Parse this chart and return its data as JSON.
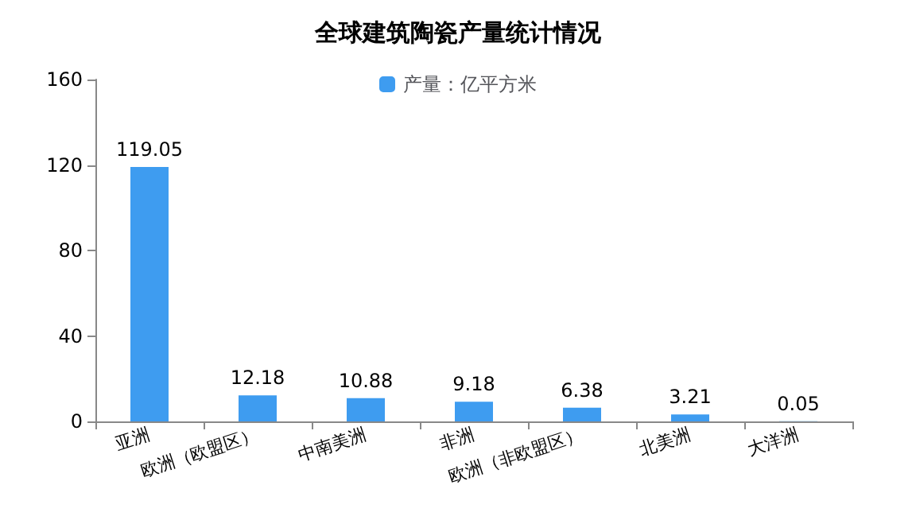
{
  "chart_data": {
    "type": "bar",
    "title": "全球建筑陶瓷产量统计情况",
    "categories": [
      "亚洲",
      "欧洲（欧盟区）",
      "中南美洲",
      "非洲",
      "欧洲（非欧盟区）",
      "北美洲",
      "大洋洲"
    ],
    "series": [
      {
        "name": "产量：亿平方米",
        "color": "#3e9cf0",
        "values": [
          119.05,
          12.18,
          10.88,
          9.18,
          6.38,
          3.21,
          0.05
        ]
      }
    ],
    "ylim": [
      0,
      160
    ],
    "yticks": [
      0,
      40,
      80,
      120,
      160
    ],
    "grid": false,
    "legend": "top",
    "data_labels": true
  }
}
